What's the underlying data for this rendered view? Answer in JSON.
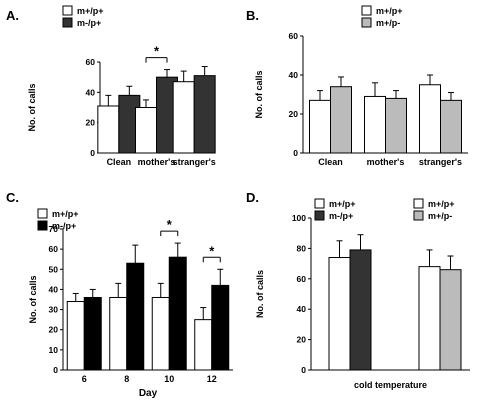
{
  "colors": {
    "white_bar": "#ffffff",
    "dark_bar": "#333333",
    "black_bar": "#000000",
    "gray_bar": "#bbbbbb",
    "axis": "#000000"
  },
  "chart_data": [
    {
      "panel": "A.",
      "type": "bar",
      "ylabel": "No. of calls",
      "ylim": [
        0,
        60
      ],
      "yticks": [
        0,
        20,
        40,
        60
      ],
      "categories": [
        "Clean",
        "mother's",
        "stranger's"
      ],
      "series": [
        {
          "name": "m+/p+",
          "color": "white_bar",
          "values": [
            31,
            30,
            47
          ],
          "errors": [
            7,
            5,
            7
          ]
        },
        {
          "name": "m-/p+",
          "color": "dark_bar",
          "values": [
            38,
            50,
            51
          ],
          "errors": [
            6,
            5,
            6
          ]
        }
      ],
      "significance": [
        {
          "category": 1,
          "label": "*"
        }
      ],
      "legend": "top-left"
    },
    {
      "panel": "B.",
      "type": "bar",
      "ylabel": "No. of calls",
      "ylim": [
        0,
        60
      ],
      "yticks": [
        0,
        20,
        40,
        60
      ],
      "categories": [
        "Clean",
        "mother's",
        "stranger's"
      ],
      "series": [
        {
          "name": "m+/p+",
          "color": "white_bar",
          "values": [
            27,
            29,
            35
          ],
          "errors": [
            5,
            7,
            5
          ]
        },
        {
          "name": "m+/p-",
          "color": "gray_bar",
          "values": [
            34,
            28,
            27
          ],
          "errors": [
            5,
            4,
            4
          ]
        }
      ],
      "significance": [],
      "legend": "top"
    },
    {
      "panel": "C.",
      "type": "bar",
      "ylabel": "No. of calls",
      "xlabel": "Day",
      "ylim": [
        0,
        70
      ],
      "yticks": [
        0,
        10,
        20,
        30,
        40,
        50,
        60,
        70
      ],
      "categories": [
        "6",
        "8",
        "10",
        "12"
      ],
      "series": [
        {
          "name": "m+/p+",
          "color": "white_bar",
          "values": [
            34,
            36,
            36,
            25
          ],
          "errors": [
            4,
            7,
            7,
            6
          ]
        },
        {
          "name": "m-/p+",
          "color": "black_bar",
          "values": [
            36,
            53,
            56,
            42
          ],
          "errors": [
            4,
            9,
            7,
            8
          ]
        }
      ],
      "significance": [
        {
          "category": 2,
          "label": "*"
        },
        {
          "category": 3,
          "label": "*"
        }
      ],
      "legend": "top-left"
    },
    {
      "panel": "D.",
      "type": "bar",
      "ylabel": "No. of calls",
      "xlabel": "cold temperature",
      "ylim": [
        0,
        100
      ],
      "yticks": [
        0,
        20,
        40,
        60,
        80,
        100
      ],
      "groups": [
        {
          "legend": [
            {
              "name": "m+/p+",
              "color": "white_bar"
            },
            {
              "name": "m-/p+",
              "color": "dark_bar"
            }
          ],
          "values": [
            74,
            79
          ],
          "errors": [
            11,
            10
          ]
        },
        {
          "legend": [
            {
              "name": "m+/p+",
              "color": "white_bar"
            },
            {
              "name": "m+/p-",
              "color": "gray_bar"
            }
          ],
          "values": [
            68,
            66
          ],
          "errors": [
            11,
            9
          ]
        }
      ]
    }
  ]
}
